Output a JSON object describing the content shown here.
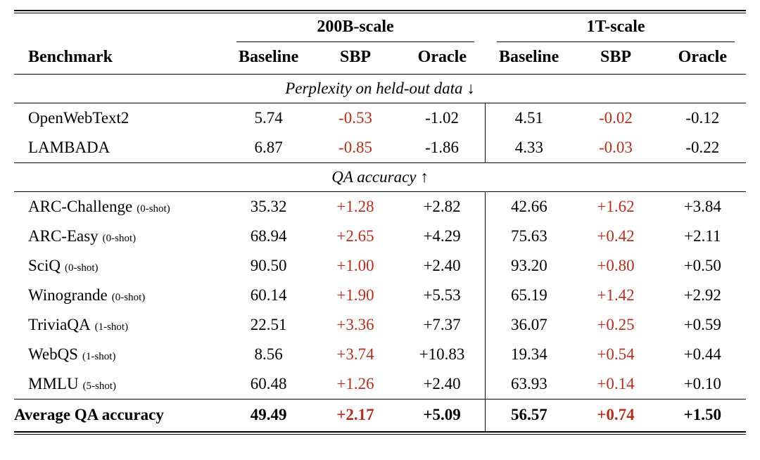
{
  "colors": {
    "sbp_red": "#b1301f",
    "rule": "#000000",
    "text": "#000000",
    "background": "#ffffff"
  },
  "table": {
    "group_headers": [
      {
        "label": "200B-scale"
      },
      {
        "label": "1T-scale"
      }
    ],
    "column_headers": [
      "Benchmark",
      "Baseline",
      "SBP",
      "Oracle",
      "Baseline",
      "SBP",
      "Oracle"
    ],
    "sections": [
      {
        "title": "Perplexity on held-out data ↓",
        "rows": [
          {
            "benchmark": "OpenWebText2",
            "shots": "",
            "values": [
              "5.74",
              "-0.53",
              "-1.02",
              "4.51",
              "-0.02",
              "-0.12"
            ]
          },
          {
            "benchmark": "LAMBADA",
            "shots": "",
            "values": [
              "6.87",
              "-0.85",
              "-1.86",
              "4.33",
              "-0.03",
              "-0.22"
            ]
          }
        ]
      },
      {
        "title": "QA accuracy ↑",
        "rows": [
          {
            "benchmark": "ARC-Challenge",
            "shots": "(0-shot)",
            "values": [
              "35.32",
              "+1.28",
              "+2.82",
              "42.66",
              "+1.62",
              "+3.84"
            ]
          },
          {
            "benchmark": "ARC-Easy",
            "shots": "(0-shot)",
            "values": [
              "68.94",
              "+2.65",
              "+4.29",
              "75.63",
              "+0.42",
              "+2.11"
            ]
          },
          {
            "benchmark": "SciQ",
            "shots": "(0-shot)",
            "values": [
              "90.50",
              "+1.00",
              "+2.40",
              "93.20",
              "+0.80",
              "+0.50"
            ]
          },
          {
            "benchmark": "Winogrande",
            "shots": "(0-shot)",
            "values": [
              "60.14",
              "+1.90",
              "+5.53",
              "65.19",
              "+1.42",
              "+2.92"
            ]
          },
          {
            "benchmark": "TriviaQA",
            "shots": "(1-shot)",
            "values": [
              "22.51",
              "+3.36",
              "+7.37",
              "36.07",
              "+0.25",
              "+0.59"
            ]
          },
          {
            "benchmark": "WebQS",
            "shots": "(1-shot)",
            "values": [
              "8.56",
              "+3.74",
              "+10.83",
              "19.34",
              "+0.54",
              "+0.44"
            ]
          },
          {
            "benchmark": "MMLU",
            "shots": "(5-shot)",
            "values": [
              "60.48",
              "+1.26",
              "+2.40",
              "63.93",
              "+0.14",
              "+0.10"
            ]
          }
        ]
      }
    ],
    "summary_row": {
      "benchmark": "Average QA accuracy",
      "shots": "",
      "values": [
        "49.49",
        "+2.17",
        "+5.09",
        "56.57",
        "+0.74",
        "+1.50"
      ]
    }
  }
}
